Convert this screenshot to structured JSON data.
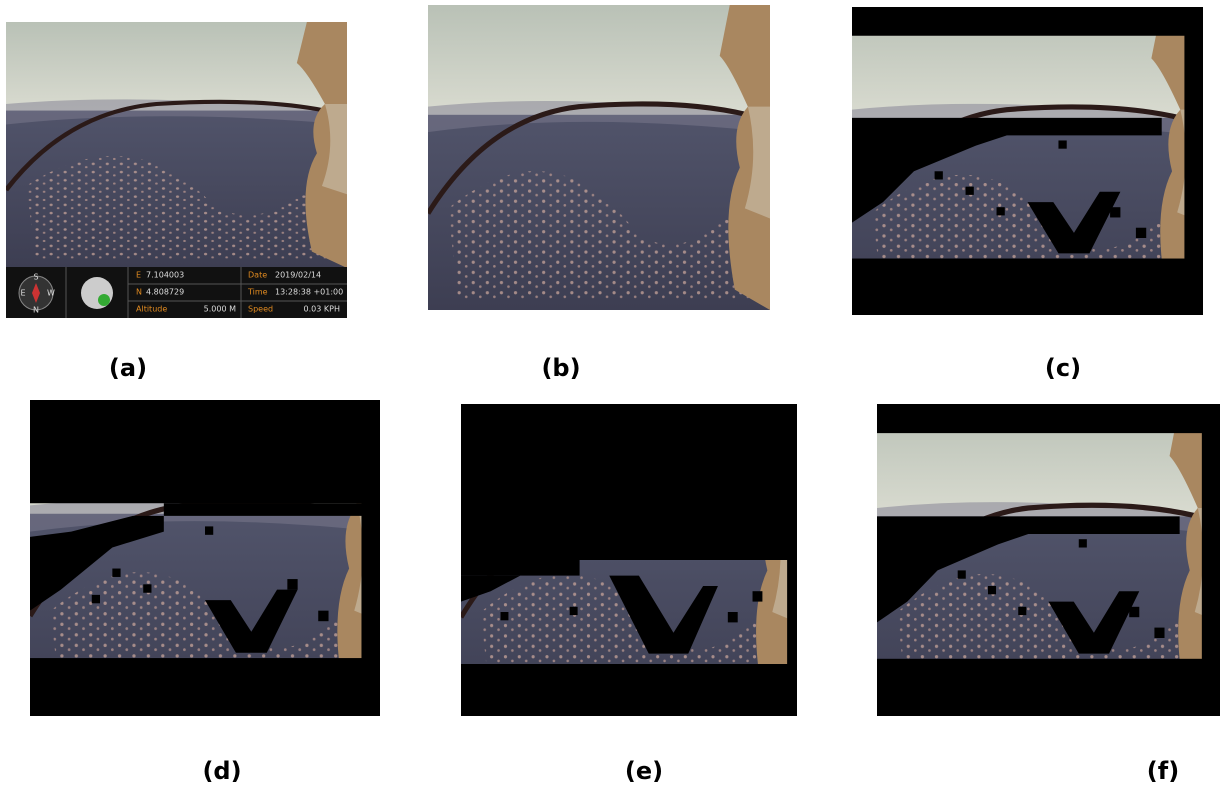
{
  "panels": [
    {
      "label": "(a)"
    },
    {
      "label": "(b)"
    },
    {
      "label": "(c)"
    },
    {
      "label": "(d)"
    },
    {
      "label": "(e)"
    },
    {
      "label": "(f)"
    }
  ],
  "overlay": {
    "compass": [
      "S",
      "E",
      "W",
      "N"
    ],
    "fields": [
      {
        "label": "E",
        "value": "7.104003"
      },
      {
        "label": "N",
        "value": "4.808729"
      },
      {
        "label": "Altitude",
        "value": "5.000 M"
      },
      {
        "label": "Date",
        "value": "2019/02/14"
      },
      {
        "label": "Time",
        "value": "13:28:38 +01:00"
      },
      {
        "label": "Speed",
        "value": "0.03 KPH"
      }
    ]
  }
}
